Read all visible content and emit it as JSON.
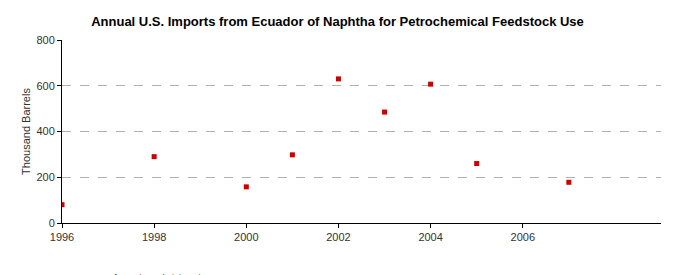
{
  "chart_data": {
    "type": "scatter",
    "title": "Annual U.S. Imports from Ecuador of Naphtha for Petrochemical Feedstock Use",
    "y_label": "Thousand Barrels",
    "source": "Source: U.S. Energy Information Administration",
    "x": [
      1996,
      1998,
      2000,
      2001,
      2002,
      2003,
      2004,
      2005,
      2007
    ],
    "values": [
      80,
      290,
      158,
      298,
      630,
      485,
      607,
      260,
      178
    ],
    "color": "#cc0000",
    "marker": "square",
    "xlim": [
      1996,
      2009
    ],
    "xticks": [
      1996,
      1998,
      2000,
      2002,
      2004,
      2006
    ],
    "ylim": [
      0,
      800
    ],
    "yticks": [
      0,
      200,
      400,
      600,
      800
    ],
    "grid": true
  }
}
